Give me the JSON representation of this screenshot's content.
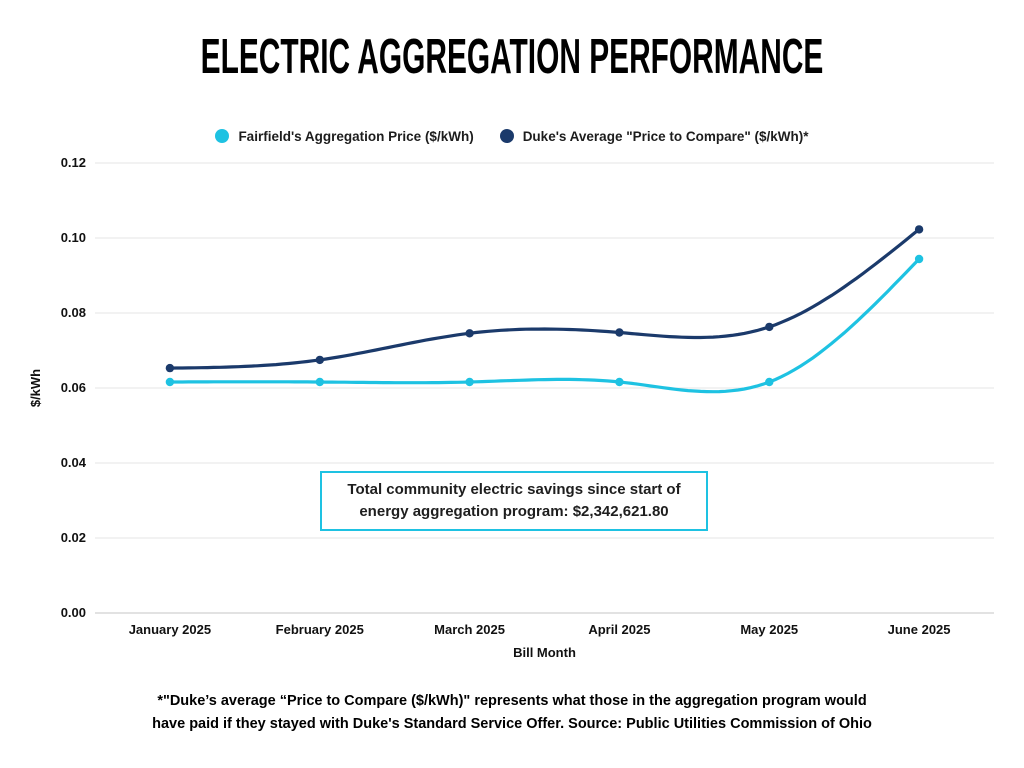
{
  "title": "ELECTRIC AGGREGATION PERFORMANCE",
  "chart_data": {
    "type": "line",
    "curve": "natural-spline",
    "categories": [
      "January 2025",
      "February 2025",
      "March 2025",
      "April 2025",
      "May 2025",
      "June 2025"
    ],
    "series": [
      {
        "name": "Fairfield's Aggregation Price ($/kWh)",
        "color": "#1EC2E2",
        "values": [
          0.0616,
          0.0616,
          0.0616,
          0.0616,
          0.0616,
          0.0944
        ]
      },
      {
        "name": "Duke's Average \"Price to Compare\" ($/kWh)*",
        "color": "#1B3A6B",
        "values": [
          0.0653,
          0.0675,
          0.0746,
          0.0748,
          0.0763,
          0.1023
        ]
      }
    ],
    "xlabel": "Bill Month",
    "ylabel": "$/kWh",
    "ylim": [
      0,
      0.12
    ],
    "yticks": [
      0,
      0.02,
      0.04,
      0.06,
      0.08,
      0.1,
      0.12
    ],
    "ytick_labels": [
      "0.00",
      "0.02",
      "0.04",
      "0.06",
      "0.08",
      "0.10",
      "0.12"
    ],
    "grid": "horizontal",
    "legend_position": "top-center",
    "gridline_color": "#e9e9e9",
    "axis_line_color": "#d8d8d8",
    "marker_radius": 4.2,
    "line_width": 3.2
  },
  "annotation": {
    "line1": "Total community electric savings since start of",
    "line2": "energy aggregation program: $2,342,621.80",
    "border_color": "#1EC2E2"
  },
  "footnote": {
    "line1": "*\"Duke’s average “Price to Compare ($/kWh)\" represents what those in the aggregation program would",
    "line2": "have paid if they stayed with Duke's Standard Service Offer. Source: Public Utilities Commission of Ohio"
  }
}
